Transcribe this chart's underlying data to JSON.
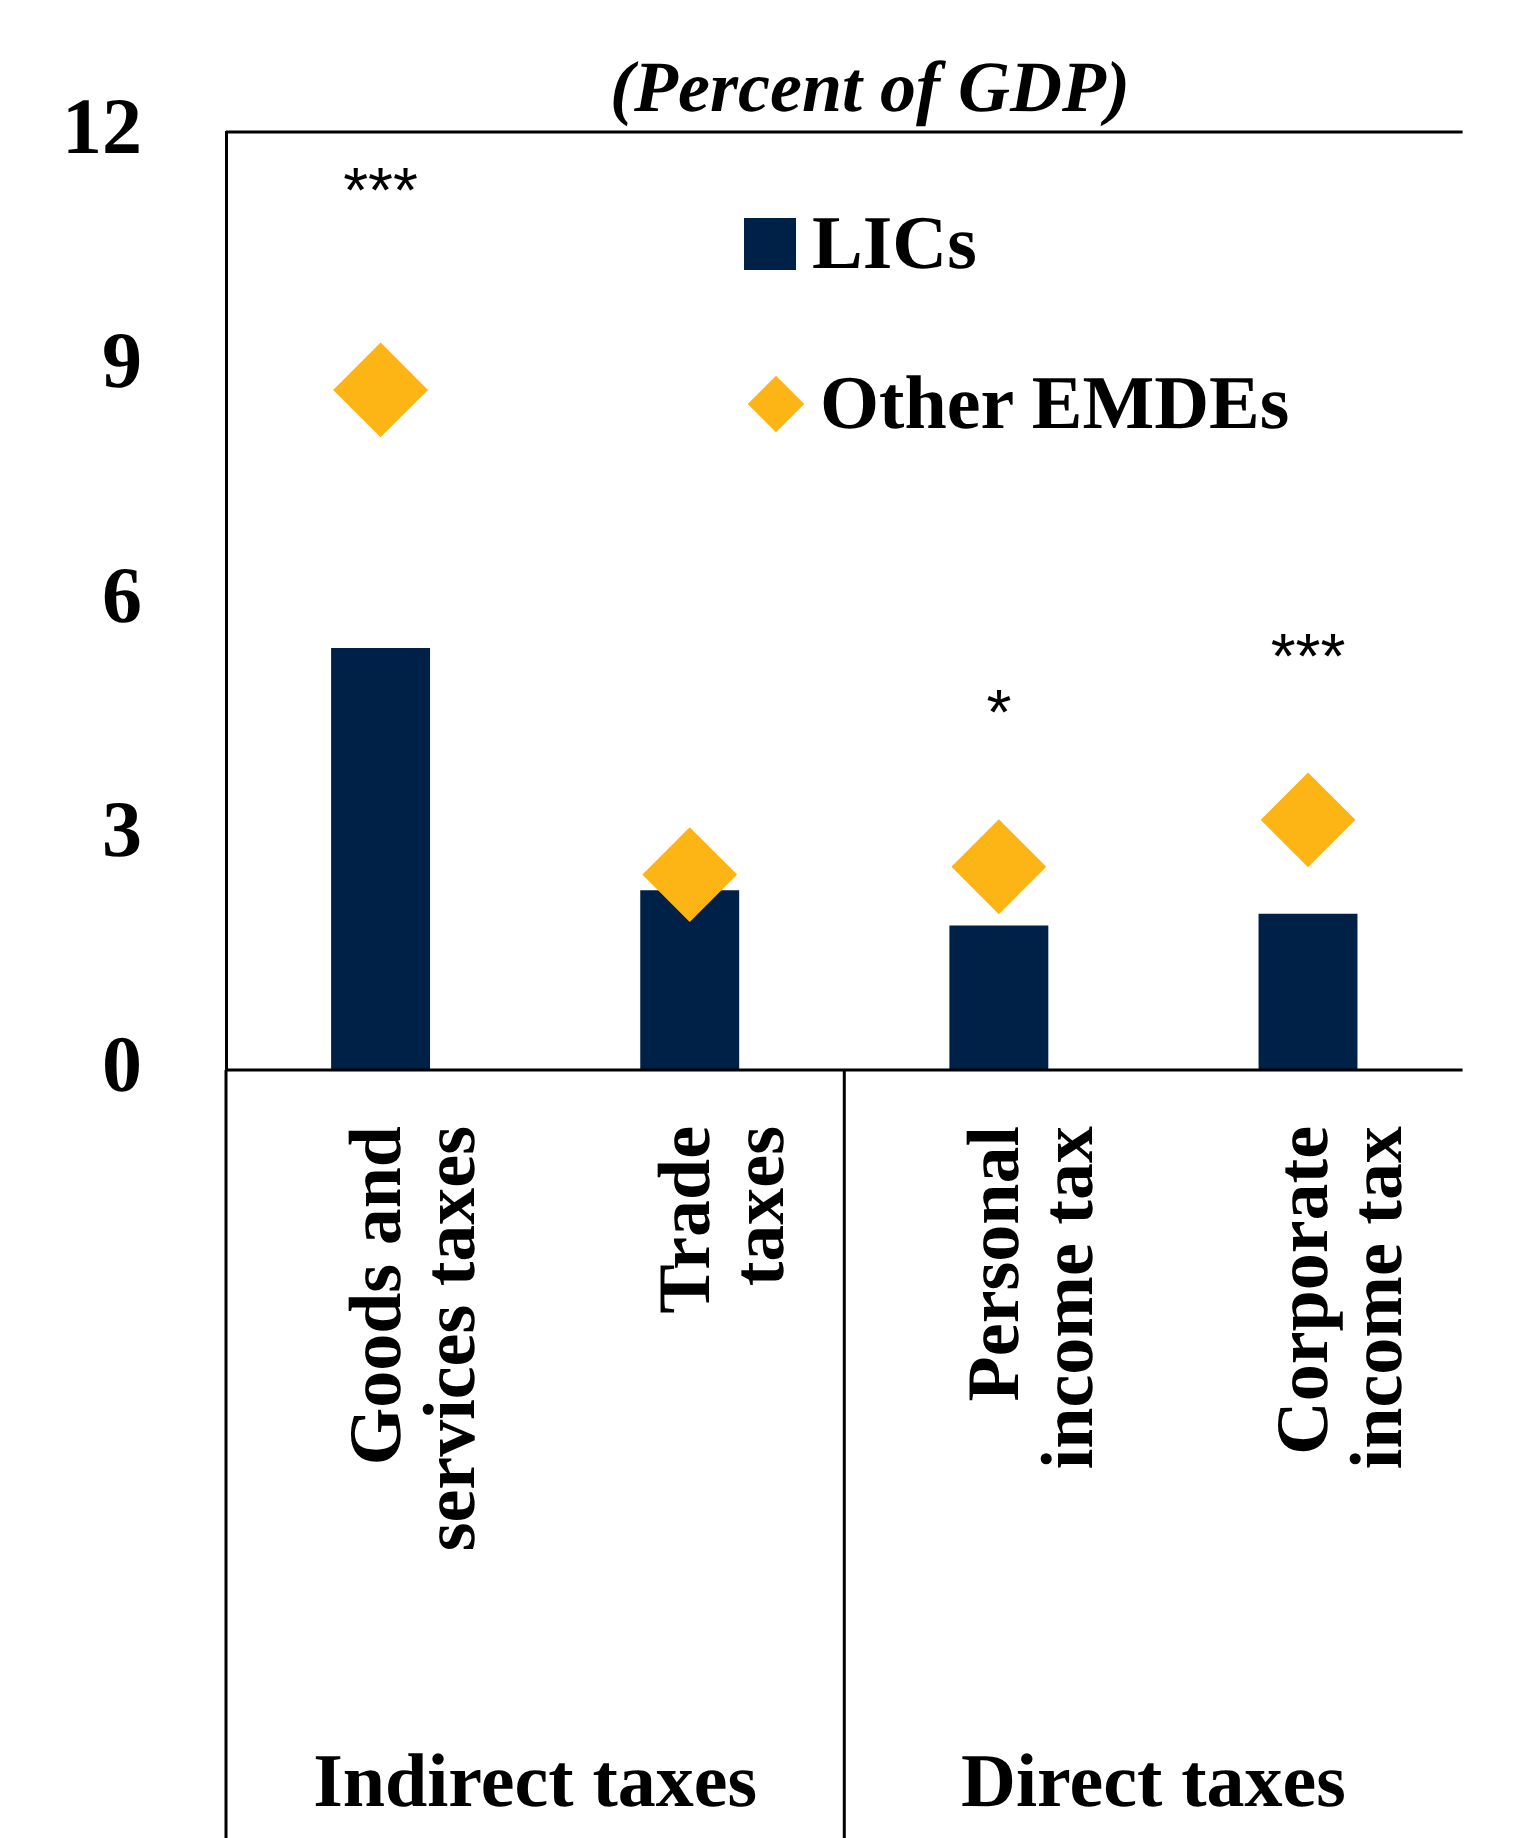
{
  "chart_data": {
    "type": "bar",
    "title": "(Percent of GDP)",
    "categories": [
      "Goods and\nservices taxes",
      "Trade\ntaxes",
      "Personal\nincome tax",
      "Corporate\nincome tax"
    ],
    "series": [
      {
        "name": "LICs",
        "color": "#002147",
        "values": [
          5.4,
          2.3,
          1.85,
          2.0
        ]
      },
      {
        "name": "Other EMDEs",
        "type": "scatter",
        "marker": "diamond",
        "color": "#fdb415",
        "x": [
          "Goods and\nservices taxes",
          "Trade\ntaxes",
          "Personal\nincome tax",
          "Corporate\nincome tax"
        ],
        "values": [
          8.7,
          2.5,
          2.6,
          3.2
        ]
      }
    ],
    "ylim": [
      0,
      12
    ],
    "yticks": [
      0,
      3,
      6,
      9,
      12
    ],
    "grid": false,
    "legend": "top right",
    "annotations": [
      "***",
      "*",
      "***",
      "Indirect taxes",
      "Direct taxes"
    ]
  }
}
